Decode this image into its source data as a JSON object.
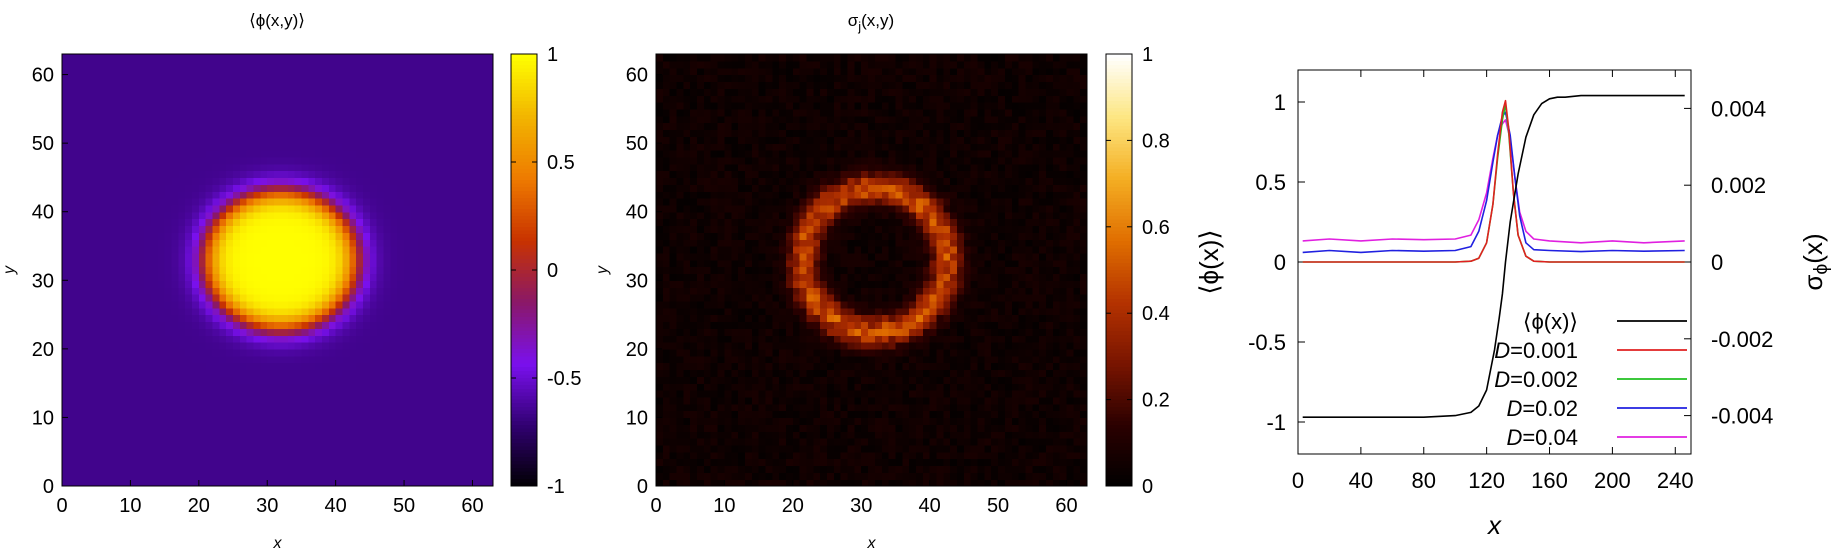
{
  "chart_data": [
    {
      "type": "heatmap",
      "title": "⟨ϕ(x,y)⟩",
      "xlabel": "x",
      "ylabel": "y",
      "xlim": [
        0,
        63
      ],
      "ylim": [
        0,
        63
      ],
      "xticks": [
        "0",
        "10",
        "20",
        "30",
        "40",
        "50",
        "60"
      ],
      "yticks": [
        "0",
        "10",
        "20",
        "30",
        "40",
        "50",
        "60"
      ],
      "colorbar": {
        "range": [
          -1,
          1
        ],
        "ticks": [
          "1",
          "0.5",
          "0",
          "-0.5",
          "-1"
        ],
        "colors": [
          "#000000",
          "#300070",
          "#7a10ee",
          "#8a1868",
          "#c83200",
          "#ee7a00",
          "#f2b400",
          "#ffff00"
        ]
      },
      "droplet": {
        "center_x": 32,
        "center_y": 33,
        "radius_x": 11,
        "radius_y": 10,
        "value_inside": 1,
        "value_outside": -0.65
      }
    },
    {
      "type": "heatmap",
      "title": "σj(x,y)",
      "title_main": "σ",
      "title_sub": "j",
      "title_rest": "(x,y)",
      "xlabel": "x",
      "ylabel": "y",
      "xlim": [
        0,
        63
      ],
      "ylim": [
        0,
        63
      ],
      "xticks": [
        "0",
        "10",
        "20",
        "30",
        "40",
        "50",
        "60"
      ],
      "yticks": [
        "0",
        "10",
        "20",
        "30",
        "40",
        "50",
        "60"
      ],
      "colorbar": {
        "range": [
          0,
          1
        ],
        "ticks": [
          "1",
          "0.8",
          "0.6",
          "0.4",
          "0.2",
          "0"
        ],
        "colors": [
          "#000000",
          "#2a0000",
          "#781400",
          "#b43200",
          "#e06e00",
          "#f4ae22",
          "#fde682",
          "#ffffff"
        ]
      },
      "ring": {
        "center_x": 32,
        "center_y": 33,
        "radius": 10.5,
        "width": 1.6,
        "peak": 0.45,
        "background": 0.05
      }
    },
    {
      "type": "line",
      "xlabel": "x",
      "ylabel_left": "⟨ϕ(x)⟩",
      "ylabel_right": "σϕ(x)",
      "ylabel_right_main": "σ",
      "ylabel_right_sub": "ϕ",
      "ylabel_right_rest": "(x)",
      "xlim": [
        0,
        250
      ],
      "ylim_left": [
        -1.2,
        1.2
      ],
      "ylim_right": [
        -0.005,
        0.005
      ],
      "xticks": [
        "0",
        "40",
        "80",
        "120",
        "160",
        "200",
        "240"
      ],
      "yticks_left": [
        "1",
        "0.5",
        "0",
        "-0.5",
        "-1"
      ],
      "yticks_right": [
        "0.004",
        "0.002",
        "0",
        "-0.002",
        "-0.004"
      ],
      "legend_position": "bottom-right",
      "series": [
        {
          "name": "⟨ϕ(x)⟩",
          "label_main": "⟨ϕ(x)⟩",
          "label_prefix": "",
          "color": "#000000",
          "axis": "left",
          "x": [
            3,
            40,
            80,
            100,
            110,
            115,
            120,
            125,
            128,
            130,
            132,
            135,
            140,
            145,
            150,
            155,
            160,
            165,
            170,
            180,
            200,
            240,
            246
          ],
          "y": [
            -0.97,
            -0.97,
            -0.97,
            -0.96,
            -0.94,
            -0.9,
            -0.8,
            -0.55,
            -0.35,
            -0.2,
            0.0,
            0.25,
            0.55,
            0.78,
            0.92,
            0.99,
            1.02,
            1.03,
            1.03,
            1.04,
            1.04,
            1.04,
            1.04
          ]
        },
        {
          "name": "D=0.001",
          "label_prefix": "D",
          "label_main": "=0.001",
          "color": "#e02020",
          "axis": "right",
          "x": [
            3,
            40,
            80,
            100,
            110,
            115,
            120,
            124,
            127,
            130,
            132,
            134,
            137,
            140,
            145,
            150,
            160,
            200,
            246
          ],
          "y": [
            0.0,
            0.0,
            0.0,
            0.0,
            2e-05,
            0.0001,
            0.0005,
            0.0015,
            0.0028,
            0.0039,
            0.0042,
            0.0035,
            0.0018,
            0.0007,
            0.00015,
            2e-05,
            0.0,
            0.0,
            0.0
          ]
        },
        {
          "name": "D=0.002",
          "label_prefix": "D",
          "label_main": "=0.002",
          "color": "#20c020",
          "axis": "right",
          "x": [
            3,
            40,
            80,
            100,
            110,
            115,
            120,
            124,
            127,
            130,
            132,
            134,
            137,
            140,
            145,
            150,
            160,
            200,
            246
          ],
          "y": [
            0.0,
            0.0,
            0.0,
            0.0,
            2e-05,
            0.0001,
            0.0005,
            0.0015,
            0.0027,
            0.0037,
            0.0041,
            0.0034,
            0.0018,
            0.0007,
            0.00015,
            2e-05,
            0.0,
            0.0,
            0.0
          ]
        },
        {
          "name": "D=0.02",
          "label_prefix": "D",
          "label_main": "=0.02",
          "color": "#2020e0",
          "axis": "right",
          "x": [
            3,
            20,
            40,
            60,
            80,
            100,
            110,
            115,
            120,
            124,
            127,
            130,
            132,
            135,
            138,
            141,
            145,
            150,
            160,
            180,
            200,
            220,
            246
          ],
          "y": [
            0.00025,
            0.0003,
            0.00025,
            0.0003,
            0.00028,
            0.0003,
            0.0004,
            0.0008,
            0.0016,
            0.0026,
            0.0033,
            0.0038,
            0.0039,
            0.0033,
            0.0022,
            0.0012,
            0.0005,
            0.00032,
            0.0003,
            0.00027,
            0.0003,
            0.00028,
            0.0003
          ]
        },
        {
          "name": "D=0.04",
          "label_prefix": "D",
          "label_main": "=0.04",
          "color": "#e020e0",
          "axis": "right",
          "x": [
            3,
            20,
            40,
            60,
            80,
            100,
            110,
            115,
            120,
            124,
            127,
            130,
            132,
            135,
            138,
            141,
            145,
            150,
            160,
            180,
            200,
            220,
            246
          ],
          "y": [
            0.00055,
            0.0006,
            0.00055,
            0.0006,
            0.00058,
            0.0006,
            0.0007,
            0.0011,
            0.0018,
            0.0027,
            0.0033,
            0.0036,
            0.0037,
            0.0032,
            0.0022,
            0.0013,
            0.0008,
            0.0006,
            0.00055,
            0.0005,
            0.00055,
            0.0005,
            0.00055
          ]
        }
      ]
    }
  ]
}
